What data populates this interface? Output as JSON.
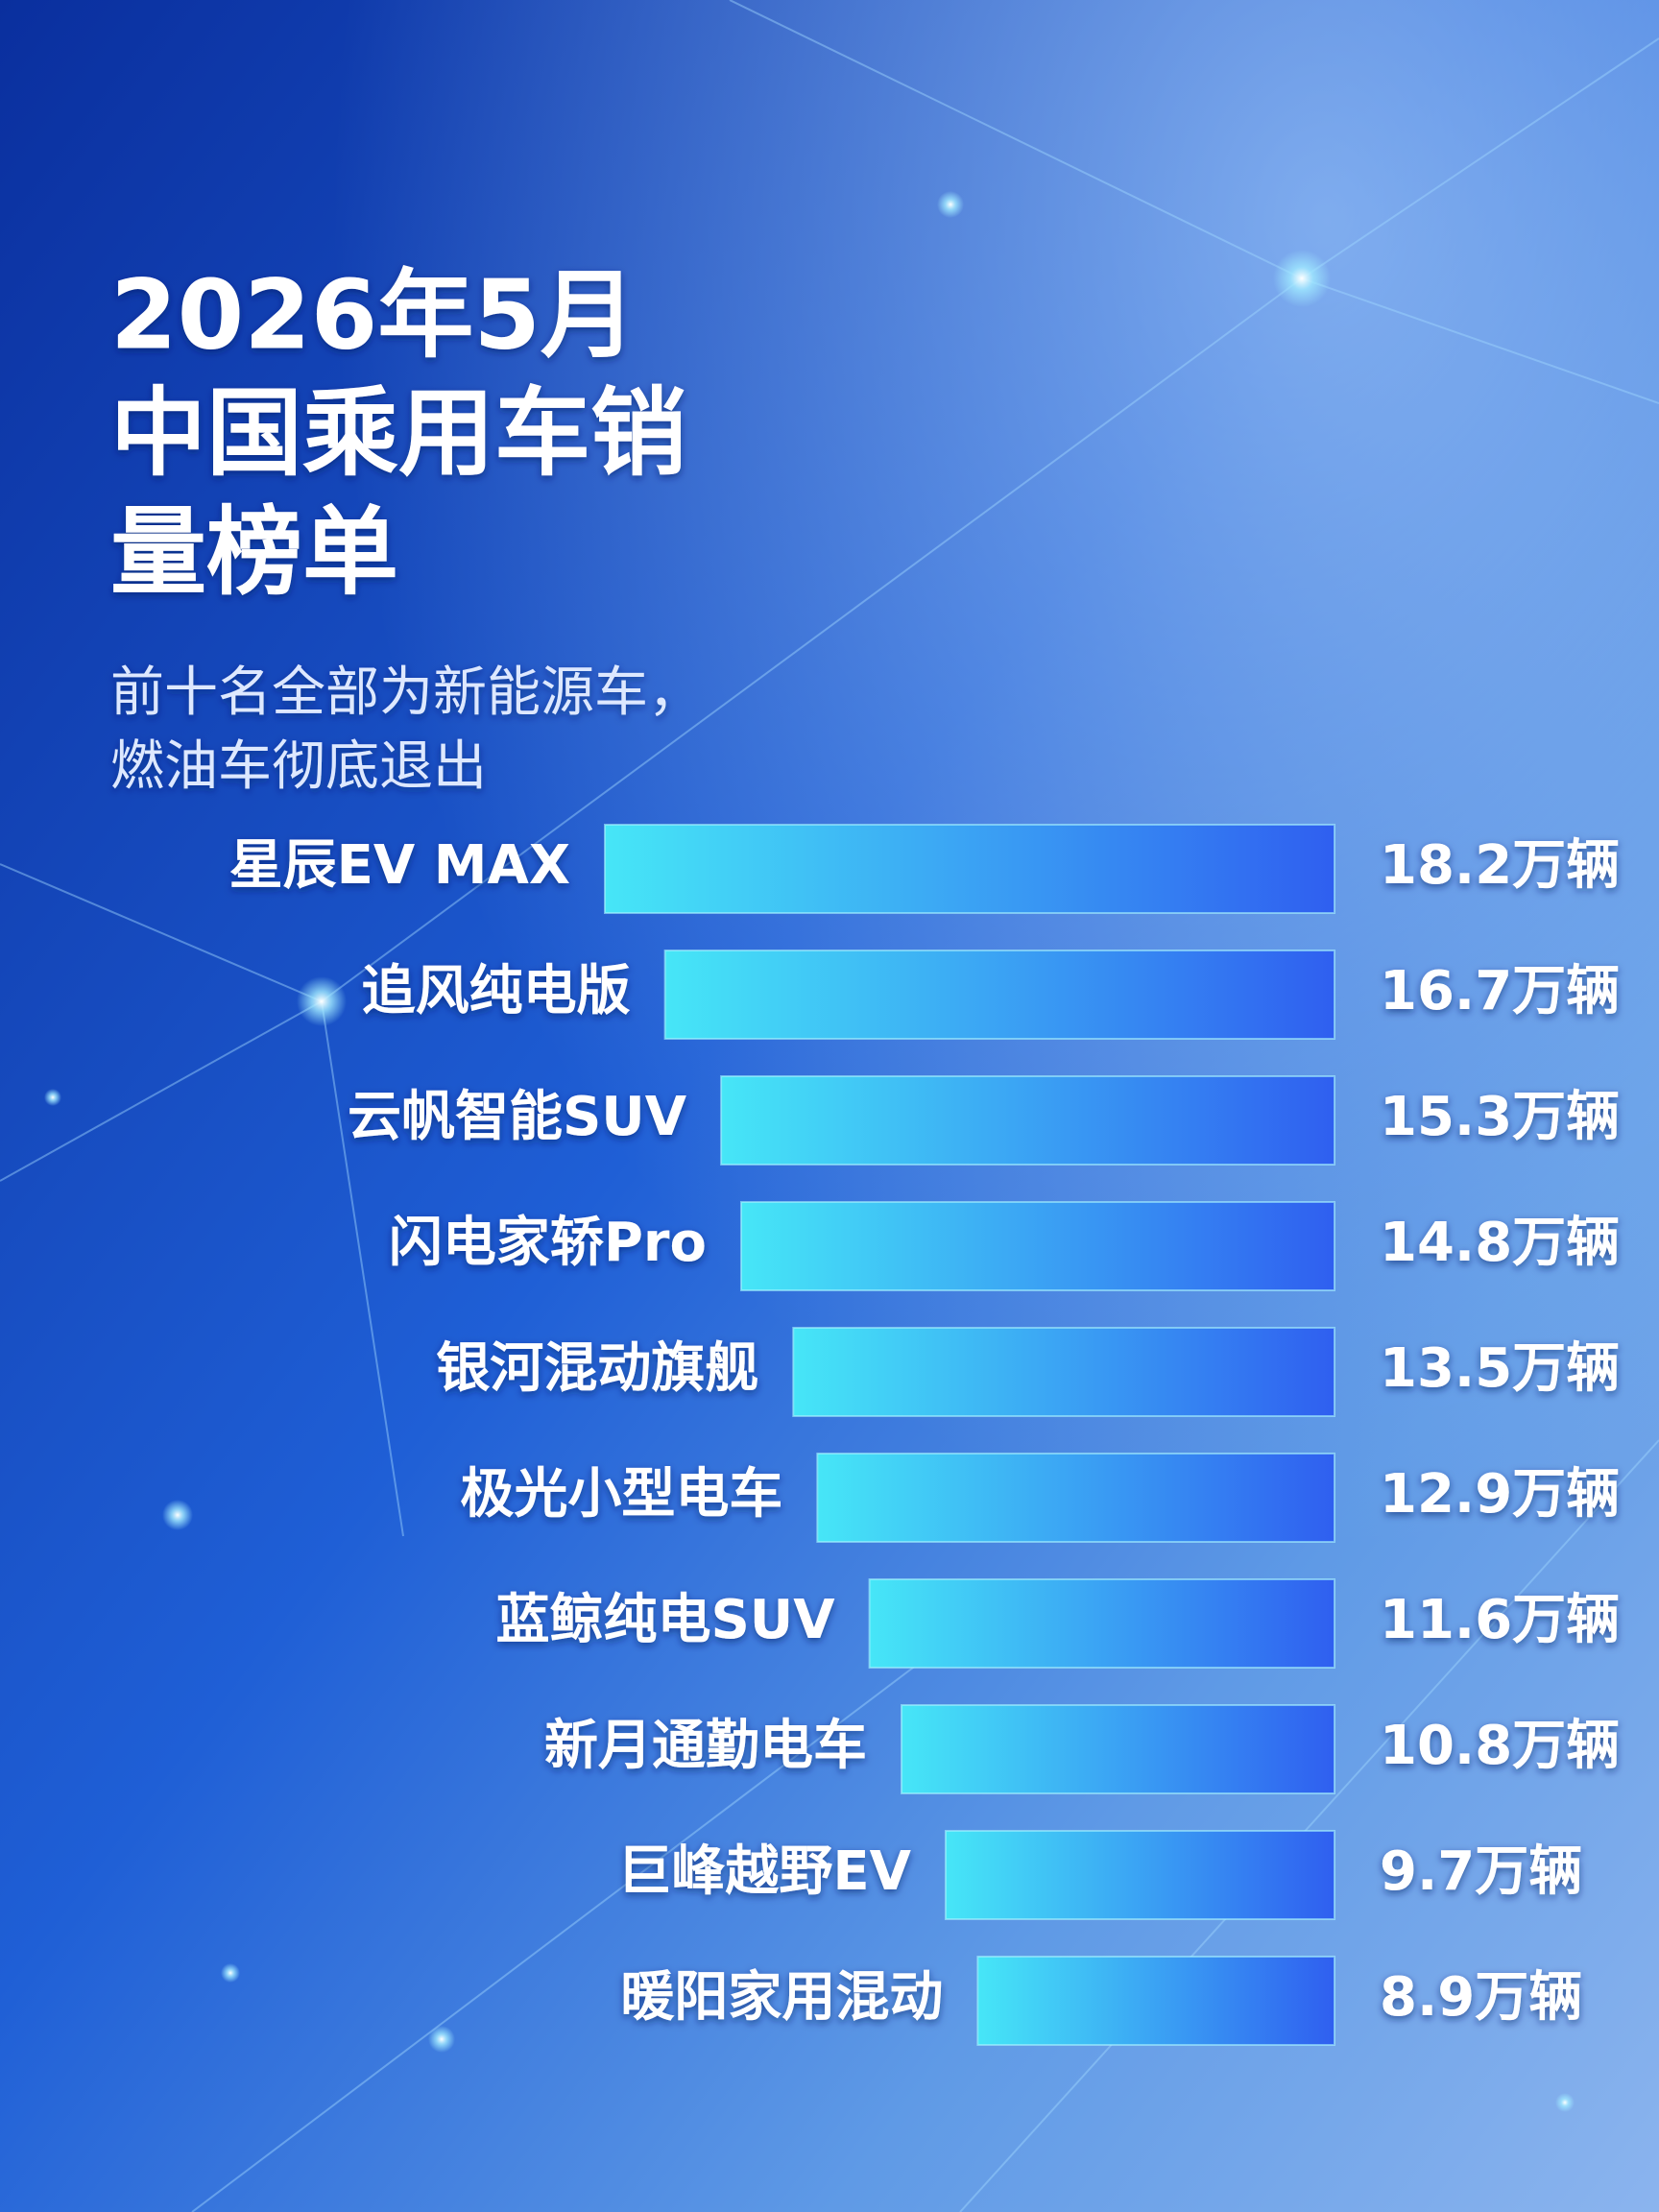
{
  "chart_data": {
    "type": "bar",
    "orientation": "horizontal",
    "title": [
      "2026年5月",
      "中国乘用车销",
      "量榜单"
    ],
    "subtitle": [
      "前十名全部为新能源车，",
      "燃油车彻底退出"
    ],
    "categories": [
      "星辰EV MAX",
      "追风纯电版",
      "云帆智能SUV",
      "闪电家轿Pro",
      "银河混动旗舰",
      "极光小型电车",
      "蓝鲸纯电SUV",
      "新月通勤电车",
      "巨峰越野EV",
      "暖阳家用混动"
    ],
    "values": [
      18.2,
      16.7,
      15.3,
      14.8,
      13.5,
      12.9,
      11.6,
      10.8,
      9.7,
      8.9
    ],
    "value_labels": [
      "18.2万辆",
      "16.7万辆",
      "15.3万辆",
      "14.8万辆",
      "13.5万辆",
      "12.9万辆",
      "11.6万辆",
      "10.8万辆",
      "9.7万辆",
      "8.9万辆"
    ],
    "color": [
      "#46e6f7",
      "#2f5ff0"
    ]
  }
}
